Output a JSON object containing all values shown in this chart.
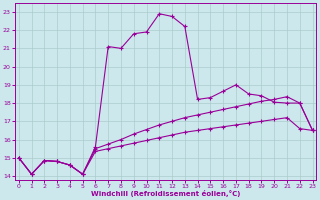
{
  "background_color": "#cce8ec",
  "grid_color": "#aacccc",
  "line_color": "#990099",
  "ylim": [
    13.8,
    23.5
  ],
  "xlim": [
    -0.3,
    23.3
  ],
  "yticks": [
    14,
    15,
    16,
    17,
    18,
    19,
    20,
    21,
    22,
    23
  ],
  "xticks": [
    0,
    1,
    2,
    3,
    4,
    5,
    6,
    7,
    8,
    9,
    10,
    11,
    12,
    13,
    14,
    15,
    16,
    17,
    18,
    19,
    20,
    21,
    22,
    23
  ],
  "xlabel": "Windchill (Refroidissement éolien,°C)",
  "line1_y": [
    15.0,
    14.1,
    14.85,
    14.8,
    14.6,
    14.1,
    15.6,
    21.1,
    21.0,
    21.8,
    21.9,
    22.9,
    22.75,
    22.2,
    18.2,
    18.3,
    18.65,
    19.0,
    18.5,
    18.4,
    18.05,
    18.0,
    18.0,
    16.5
  ],
  "line2_y": [
    15.0,
    14.1,
    14.85,
    14.8,
    14.6,
    14.1,
    15.5,
    15.75,
    16.0,
    16.3,
    16.55,
    16.8,
    17.0,
    17.2,
    17.35,
    17.5,
    17.65,
    17.8,
    17.95,
    18.1,
    18.2,
    18.35,
    18.0,
    16.5
  ],
  "line3_y": [
    15.0,
    14.1,
    14.85,
    14.8,
    14.6,
    14.1,
    15.35,
    15.5,
    15.65,
    15.8,
    15.95,
    16.1,
    16.25,
    16.4,
    16.5,
    16.6,
    16.7,
    16.8,
    16.9,
    17.0,
    17.1,
    17.2,
    16.6,
    16.5
  ]
}
